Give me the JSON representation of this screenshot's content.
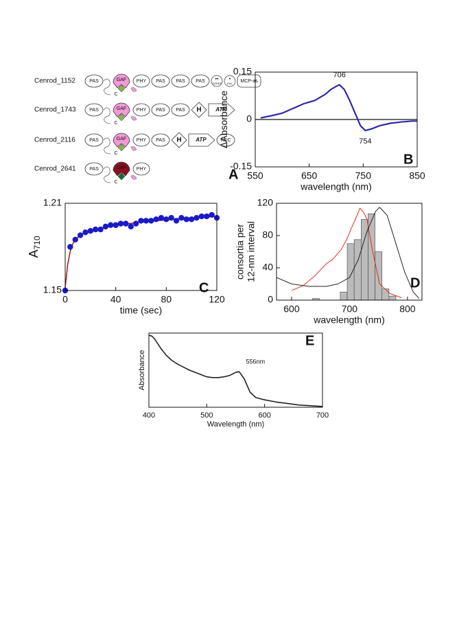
{
  "panel_a": {
    "panel_label": "A",
    "chromophore_label": "C",
    "rows": [
      {
        "name": "Cenrod_1152",
        "gaf_color": "#f29ad8",
        "domains": [
          "PAS",
          "GAF",
          "PHY",
          "PAS",
          "PAS",
          "PAS",
          "GGDEF",
          "EAL",
          "MCP-as"
        ]
      },
      {
        "name": "Cenrod_1743",
        "gaf_color": "#f29ad8",
        "domains": [
          "PAS",
          "GAF",
          "PHY",
          "PAS",
          "PAS",
          "H",
          "ATP"
        ]
      },
      {
        "name": "Cenrod_2116",
        "gaf_color": "#f29ad8",
        "domains": [
          "PAS",
          "GAF",
          "PHY",
          "PAS",
          "H",
          "ATP",
          "REC"
        ]
      },
      {
        "name": "Cenrod_2641",
        "gaf_color": "#8a1020",
        "domains": [
          "PAS",
          "GAF",
          "PHY"
        ]
      }
    ]
  },
  "chart_data": [
    {
      "type": "line",
      "panel_label": "B",
      "x_label": "wavelength (nm)",
      "y_label": "ΔAbsorbance",
      "xlim": [
        550,
        850
      ],
      "xticks": [
        550,
        650,
        750,
        850
      ],
      "ylim": [
        -0.15,
        0.15
      ],
      "yticks": [
        -0.15,
        0,
        0.15
      ],
      "zero_line": true,
      "color": "#2a2aa8",
      "x": [
        560,
        580,
        600,
        620,
        640,
        650,
        660,
        670,
        680,
        690,
        700,
        706,
        715,
        725,
        735,
        745,
        754,
        765,
        780,
        800,
        820,
        840,
        850
      ],
      "values": [
        0.005,
        0.012,
        0.02,
        0.035,
        0.05,
        0.055,
        0.06,
        0.07,
        0.08,
        0.095,
        0.105,
        0.11,
        0.095,
        0.06,
        0.02,
        -0.02,
        -0.035,
        -0.03,
        -0.02,
        -0.012,
        -0.008,
        -0.005,
        -0.005
      ],
      "annotations": [
        {
          "text": "706",
          "x": 706,
          "y": 0.11
        },
        {
          "text": "754",
          "x": 754,
          "y": -0.035
        }
      ]
    },
    {
      "type": "scatter",
      "panel_label": "C",
      "x_label": "time (sec)",
      "y_label": "A",
      "y_label_subscript": "710",
      "xlim": [
        0,
        120
      ],
      "xticks": [
        0,
        40,
        80,
        120
      ],
      "ylim": [
        1.15,
        1.21
      ],
      "yticks": [
        1.15,
        1.21
      ],
      "color": "#1a1ac8",
      "x": [
        0,
        4,
        8,
        12,
        16,
        20,
        24,
        28,
        32,
        36,
        40,
        44,
        48,
        52,
        56,
        60,
        64,
        68,
        72,
        76,
        80,
        84,
        88,
        92,
        96,
        100,
        104,
        108,
        112,
        116,
        120
      ],
      "values": [
        1.15,
        1.18,
        1.185,
        1.188,
        1.19,
        1.191,
        1.192,
        1.192,
        1.194,
        1.195,
        1.195,
        1.196,
        1.196,
        1.194,
        1.196,
        1.198,
        1.198,
        1.198,
        1.199,
        1.2,
        1.199,
        1.2,
        1.198,
        1.2,
        1.199,
        1.199,
        1.2,
        1.201,
        1.201,
        1.202,
        1.2
      ],
      "fit": {
        "color": "#b01010",
        "x": [
          0,
          2,
          4,
          6,
          8,
          12,
          16,
          20,
          30,
          40,
          60,
          80,
          100,
          120
        ],
        "values": [
          1.152,
          1.168,
          1.177,
          1.182,
          1.185,
          1.188,
          1.19,
          1.191,
          1.193,
          1.195,
          1.197,
          1.1985,
          1.2,
          1.201
        ]
      }
    },
    {
      "type": "histogram",
      "panel_label": "D",
      "x_label": "wavelength (nm)",
      "y_label": [
        "consortia per",
        "12-nm interval"
      ],
      "xlim": [
        574,
        825
      ],
      "xticks": [
        600,
        700,
        800
      ],
      "ylim": [
        0,
        120
      ],
      "yticks": [
        0,
        40,
        80,
        120
      ],
      "color": "#bbbbbb",
      "bins": [
        636,
        648,
        660,
        672,
        684,
        696,
        708,
        720,
        732,
        744,
        756,
        768,
        780
      ],
      "counts": [
        2,
        0,
        0,
        0,
        10,
        70,
        75,
        100,
        107,
        60,
        14,
        5
      ],
      "lines": [
        {
          "color": "#e03020",
          "x": [
            600,
            620,
            640,
            660,
            670,
            685,
            695,
            705,
            710,
            718,
            725,
            730,
            740,
            752,
            770,
            790
          ],
          "values": [
            12,
            18,
            30,
            45,
            50,
            62,
            75,
            92,
            100,
            114,
            108,
            100,
            60,
            20,
            8,
            3
          ]
        },
        {
          "color": "#222222",
          "x": [
            574,
            600,
            630,
            660,
            680,
            700,
            715,
            730,
            745,
            752,
            765,
            780,
            795,
            810,
            820
          ],
          "values": [
            28,
            20,
            17,
            17,
            20,
            28,
            50,
            85,
            110,
            115,
            105,
            70,
            35,
            10,
            2
          ]
        }
      ]
    },
    {
      "type": "line",
      "panel_label": "E",
      "x_label": "Wavelength (nm)",
      "y_label": "Absorbance",
      "xlim": [
        400,
        700
      ],
      "xticks": [
        400,
        500,
        600,
        700
      ],
      "ylim": [
        0,
        1
      ],
      "yticks": [],
      "color": "#222222",
      "x": [
        400,
        405,
        410,
        420,
        430,
        440,
        450,
        460,
        470,
        480,
        490,
        500,
        510,
        520,
        530,
        540,
        550,
        556,
        565,
        575,
        585,
        600,
        620,
        640,
        660,
        680,
        700
      ],
      "values": [
        0.97,
        0.96,
        0.92,
        0.8,
        0.7,
        0.63,
        0.58,
        0.54,
        0.5,
        0.47,
        0.44,
        0.41,
        0.4,
        0.4,
        0.41,
        0.43,
        0.47,
        0.48,
        0.38,
        0.2,
        0.13,
        0.1,
        0.07,
        0.05,
        0.03,
        0.02,
        0.01
      ],
      "annotations": [
        {
          "text": "556nm",
          "x": 556,
          "y": 0.48
        }
      ]
    }
  ]
}
